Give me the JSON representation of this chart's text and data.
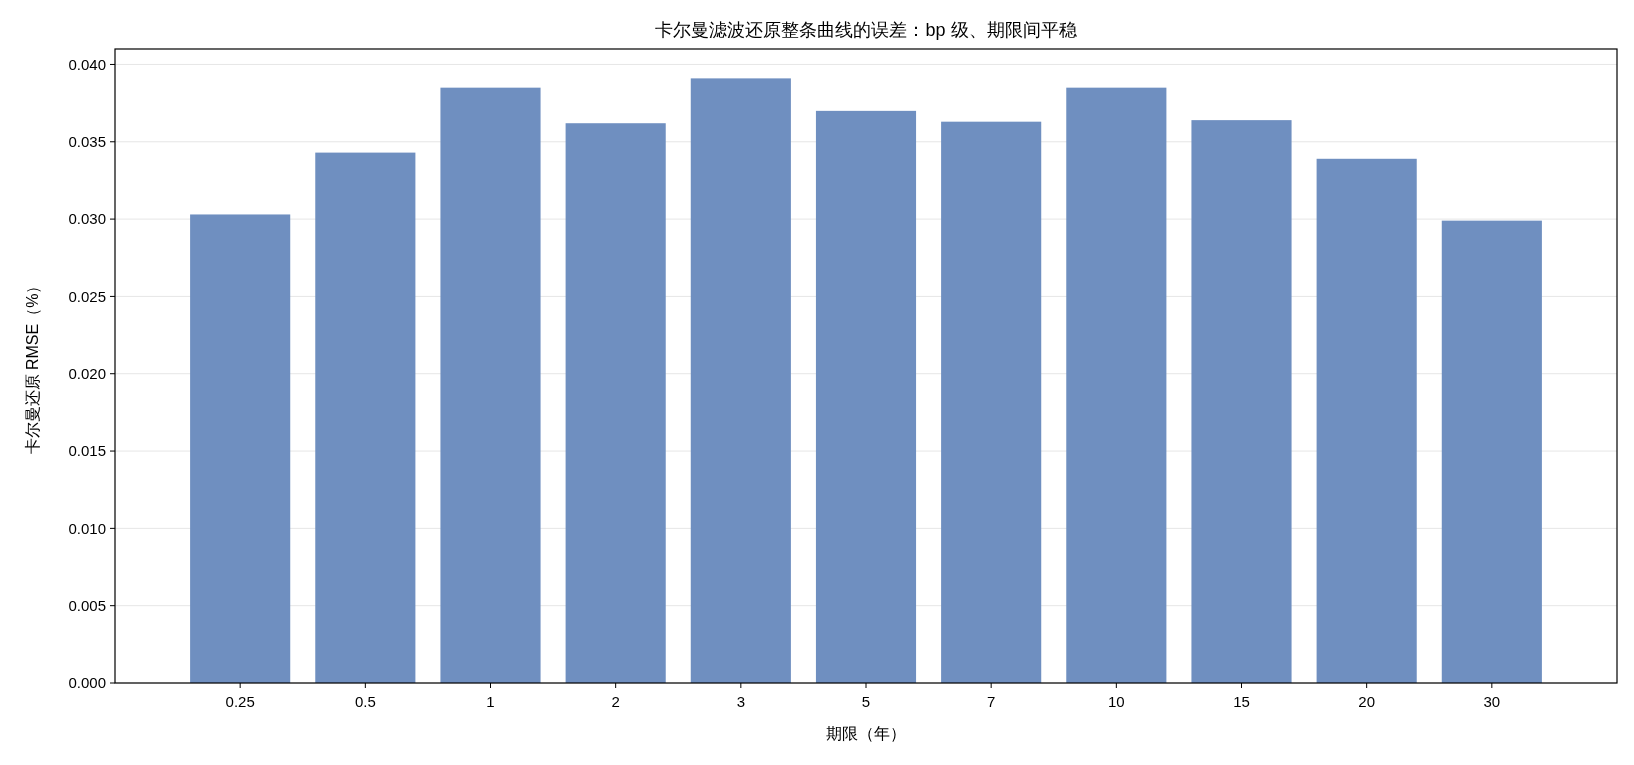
{
  "chart_data": {
    "type": "bar",
    "title": "卡尔曼滤波还原整条曲线的误差：bp 级、期限间平稳",
    "xlabel": "期限（年）",
    "ylabel": "卡尔曼还原 RMSE（%）",
    "categories": [
      "0.25",
      "0.5",
      "1",
      "2",
      "3",
      "5",
      "7",
      "10",
      "15",
      "20",
      "30"
    ],
    "values": [
      0.0303,
      0.0343,
      0.0385,
      0.0362,
      0.0391,
      0.037,
      0.0363,
      0.0385,
      0.0364,
      0.0339,
      0.0299
    ],
    "color": "#6f8fc0",
    "ylim": [
      0,
      0.041
    ],
    "yticks": [
      {
        "value": 0,
        "label": "0.000"
      },
      {
        "value": 0.005,
        "label": "0.005"
      },
      {
        "value": 0.01,
        "label": "0.010"
      },
      {
        "value": 0.015,
        "label": "0.015"
      },
      {
        "value": 0.02,
        "label": "0.020"
      },
      {
        "value": 0.025,
        "label": "0.025"
      },
      {
        "value": 0.03,
        "label": "0.030"
      },
      {
        "value": 0.035,
        "label": "0.035"
      },
      {
        "value": 0.04,
        "label": "0.040"
      }
    ],
    "grid": "y"
  }
}
